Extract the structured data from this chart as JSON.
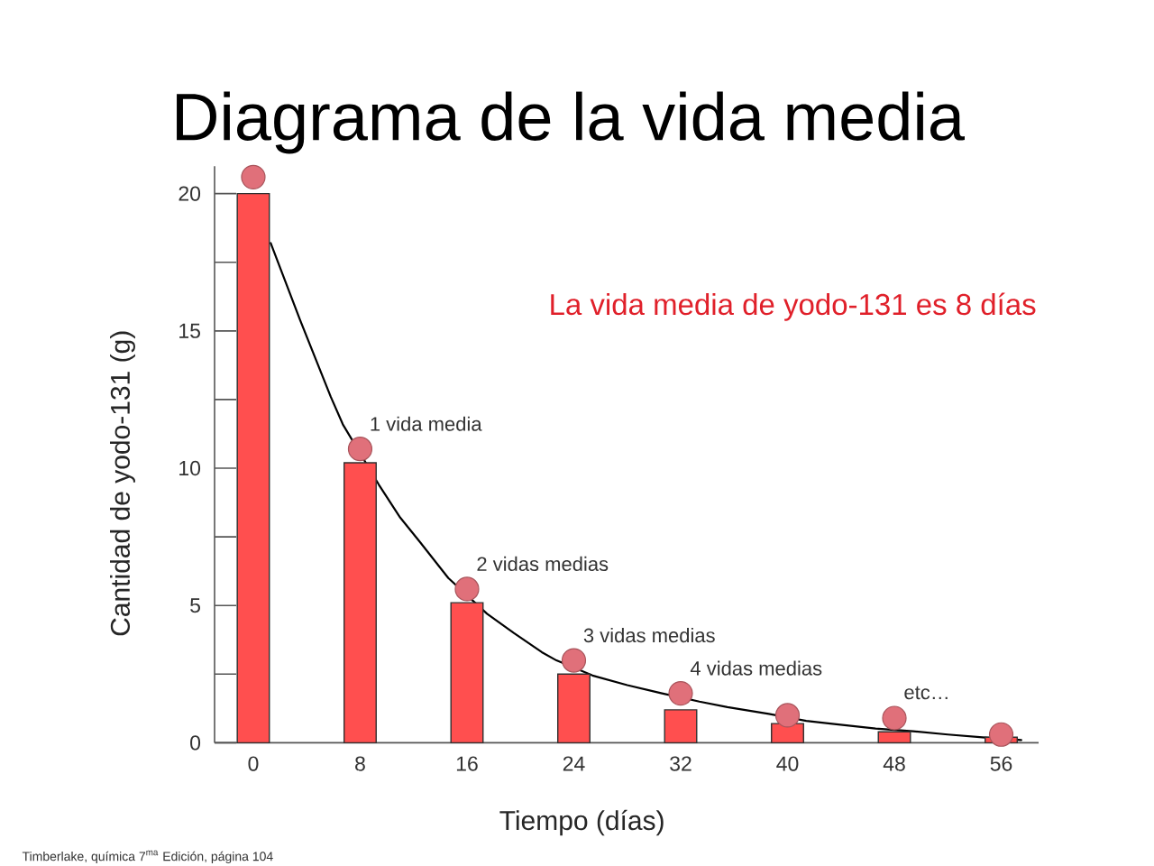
{
  "chart_data": {
    "type": "bar",
    "title": "Diagrama de la vida media",
    "xlabel": "Tiempo (días)",
    "ylabel": "Cantidad de yodo-131 (g)",
    "x": [
      0,
      8,
      16,
      24,
      32,
      40,
      48,
      56
    ],
    "series": [
      {
        "type": "line",
        "color": "#000000",
        "x": [
          1.3,
          3.5,
          5.8,
          6.7,
          9.4,
          11,
          12.5,
          14.6,
          17.5,
          19.5,
          21.6,
          22.7,
          25.4,
          28,
          30.6,
          33.4,
          35.5,
          38.6,
          41.4,
          43.5,
          46.6,
          49.4,
          52,
          54.6,
          57.5
        ],
        "values": [
          18.2,
          15.4,
          12.6,
          11.6,
          9.4,
          8.2,
          7.3,
          6.0,
          4.7,
          4.0,
          3.3,
          3.0,
          2.45,
          2.1,
          1.8,
          1.5,
          1.3,
          1.05,
          0.8,
          0.68,
          0.52,
          0.42,
          0.3,
          0.2,
          0.1
        ]
      },
      {
        "color": "#ff4f4f",
        "values": [
          20,
          10.2,
          5.1,
          2.5,
          1.2,
          0.7,
          0.4,
          0.2
        ]
      },
      {
        "type": "scatter",
        "color": "#e0707a",
        "marker": "circle",
        "values": [
          20.6,
          10.7,
          5.6,
          3.0,
          1.8,
          1.0,
          0.9,
          0.3
        ]
      }
    ],
    "xlim": [
      -2.9,
      58.8
    ],
    "xticks": [
      0,
      8,
      16,
      24,
      32,
      40,
      48,
      56
    ],
    "ylim": [
      0,
      21
    ],
    "yticks": [
      0,
      {
        "value": 2.5,
        "label": null
      },
      5,
      {
        "value": 7.5,
        "label": null
      },
      10,
      {
        "value": 12.5,
        "label": null
      },
      15,
      {
        "value": 17.5,
        "label": null
      },
      20
    ],
    "annotations": [
      "La vida media de yodo-131 es 8 días",
      {
        "text": "1 vida media",
        "x": 8,
        "y": 10.7
      },
      {
        "text": "2 vidas medias",
        "x": 16,
        "y": 5.6
      },
      {
        "text": "3 vidas medias",
        "x": 24,
        "y": 3.0
      },
      {
        "text": "4 vidas medias",
        "x": 32,
        "y": 1.8
      },
      {
        "text": "etc…",
        "x": 48,
        "y": 0.9
      },
      "Timberlake, química 7$^{ma}$ Edición, página 104"
    ]
  }
}
